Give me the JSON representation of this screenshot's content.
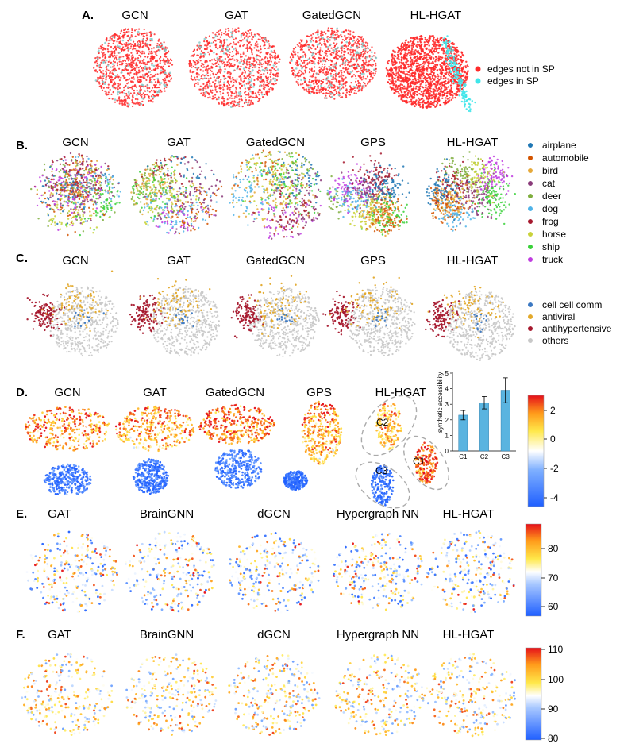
{
  "figure": {
    "panels": [
      {
        "label": "A.",
        "titles": [
          "GCN",
          "GAT",
          "GatedGCN",
          "HL-HGAT"
        ],
        "legend": [
          {
            "label": "edges not in SP",
            "color": "#ff2a2a"
          },
          {
            "label": "edges in SP",
            "color": "#3fe6ea"
          }
        ]
      },
      {
        "label": "B.",
        "titles": [
          "GCN",
          "GAT",
          "GatedGCN",
          "GPS",
          "HL-HGAT"
        ],
        "legend": [
          {
            "label": "airplane",
            "color": "#1f77b4"
          },
          {
            "label": "automobile",
            "color": "#d35400"
          },
          {
            "label": "bird",
            "color": "#e6a93a"
          },
          {
            "label": "cat",
            "color": "#8a3b7a"
          },
          {
            "label": "deer",
            "color": "#7fae3e"
          },
          {
            "label": "dog",
            "color": "#4fb3e8"
          },
          {
            "label": "frog",
            "color": "#a6192e"
          },
          {
            "label": "horse",
            "color": "#c9d23a"
          },
          {
            "label": "ship",
            "color": "#3ad13a"
          },
          {
            "label": "truck",
            "color": "#c03ce0"
          }
        ]
      },
      {
        "label": "C.",
        "titles": [
          "GCN",
          "GAT",
          "GatedGCN",
          "GPS",
          "HL-HGAT"
        ],
        "legend": [
          {
            "label": "cell cell comm",
            "color": "#3b78c2"
          },
          {
            "label": "antiviral",
            "color": "#e3a92b"
          },
          {
            "label": "antihypertensive",
            "color": "#a6192e"
          },
          {
            "label": "others",
            "color": "#c8c8c8"
          }
        ]
      },
      {
        "label": "D.",
        "titles": [
          "GCN",
          "GAT",
          "GatedGCN",
          "GPS",
          "HL-HGAT"
        ],
        "cluster_labels": [
          "C1",
          "C2",
          "C3"
        ],
        "colorbar_ticks": [
          "2",
          "0",
          "-2",
          "-4"
        ]
      },
      {
        "label": "E.",
        "titles": [
          "GAT",
          "BrainGNN",
          "dGCN",
          "Hypergraph NN",
          "HL-HGAT"
        ],
        "colorbar_ticks": [
          "80",
          "70",
          "60"
        ]
      },
      {
        "label": "F.",
        "titles": [
          "GAT",
          "BrainGNN",
          "dGCN",
          "Hypergraph NN",
          "HL-HGAT"
        ],
        "colorbar_ticks": [
          "110",
          "100",
          "90",
          "80"
        ]
      }
    ]
  },
  "chart_data": {
    "type": "bar",
    "title": "",
    "xlabel": "",
    "ylabel": "synthetic accessibility",
    "categories": [
      "C1",
      "C2",
      "C3"
    ],
    "values": [
      2.3,
      3.1,
      3.9
    ],
    "errors": [
      0.3,
      0.4,
      0.8
    ],
    "ylim": [
      0,
      5
    ],
    "yticks": [
      "0",
      "1",
      "2",
      "3",
      "4",
      "5"
    ],
    "bar_color": "#5ab4e0"
  }
}
